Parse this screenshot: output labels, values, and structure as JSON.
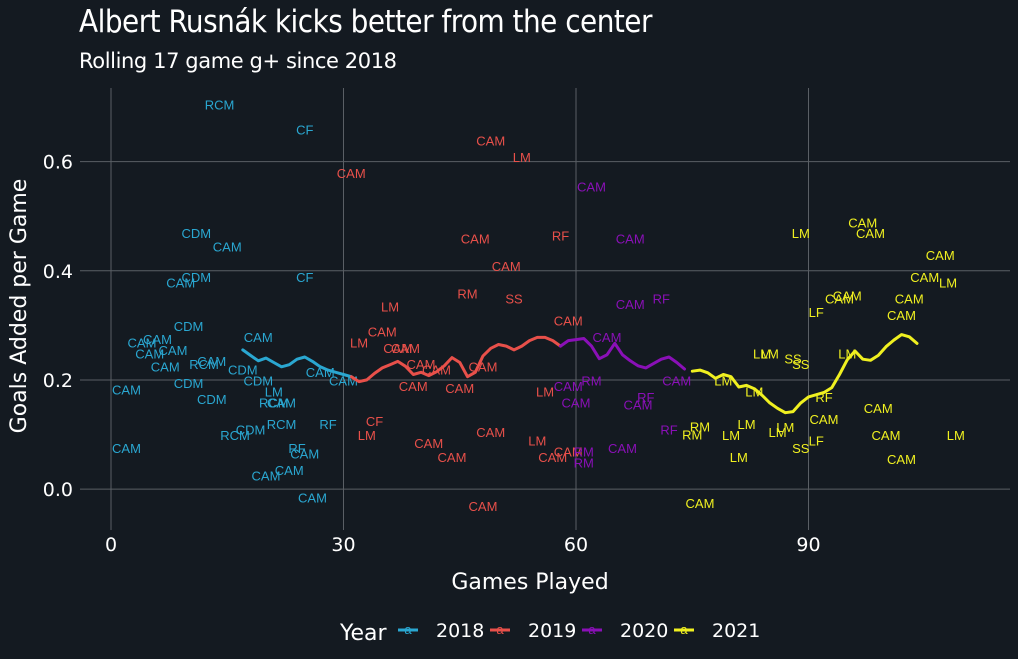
{
  "chart_data": {
    "type": "line",
    "title": "Albert Rusnák kicks better from the center",
    "subtitle": "Rolling 17 game g+ since 2018",
    "xlabel": "Games Played",
    "ylabel": "Goals Added per Game",
    "xlim": [
      -4,
      116
    ],
    "ylim": [
      -0.075,
      0.735
    ],
    "x_ticks": [
      0,
      30,
      60,
      90
    ],
    "x_tick_labels": [
      "0",
      "30",
      "60",
      "90"
    ],
    "y_ticks": [
      0.0,
      0.2,
      0.4,
      0.6
    ],
    "y_tick_labels": [
      "0.0",
      "0.2",
      "0.4",
      "0.6"
    ],
    "grid": true,
    "legend_title": "Year",
    "legend_position": "bottom",
    "legend_key_glyph": "a",
    "colors": {
      "2018": "#2aa7d1",
      "2019": "#e8504a",
      "2020": "#8a10b7",
      "2021": "#f0f020",
      "background": "#141a21",
      "grid": "#5a5f65"
    },
    "series": [
      {
        "name": "2018",
        "color": "#2aa7d1",
        "rolling": [
          [
            17,
            0.255
          ],
          [
            18,
            0.245
          ],
          [
            19,
            0.235
          ],
          [
            20,
            0.24
          ],
          [
            21,
            0.232
          ],
          [
            22,
            0.224
          ],
          [
            23,
            0.228
          ],
          [
            24,
            0.238
          ],
          [
            25,
            0.242
          ],
          [
            26,
            0.234
          ],
          [
            27,
            0.224
          ],
          [
            28,
            0.218
          ],
          [
            29,
            0.214
          ],
          [
            30,
            0.21
          ],
          [
            31,
            0.206
          ]
        ],
        "games": [
          [
            "CAM",
            2,
            0.073
          ],
          [
            "CAM",
            2,
            0.181
          ],
          [
            "CAM",
            4,
            0.267
          ],
          [
            "CAM",
            5,
            0.247
          ],
          [
            "CAM",
            6,
            0.273
          ],
          [
            "CAM",
            7,
            0.223
          ],
          [
            "CAM",
            8,
            0.253
          ],
          [
            "CAM",
            9,
            0.377
          ],
          [
            "CDM",
            10,
            0.297
          ],
          [
            "CDM",
            10,
            0.193
          ],
          [
            "CDM",
            11,
            0.467
          ],
          [
            "CDM",
            11,
            0.387
          ],
          [
            "RCM",
            12,
            0.227
          ],
          [
            "RCM",
            14,
            0.703
          ],
          [
            "CDM",
            13,
            0.163
          ],
          [
            "CAM",
            13,
            0.233
          ],
          [
            "CAM",
            15,
            0.443
          ],
          [
            "RCM",
            16,
            0.097
          ],
          [
            "CDM",
            17,
            0.217
          ],
          [
            "CDM",
            18,
            0.107
          ],
          [
            "CAM",
            19,
            0.277
          ],
          [
            "CDM",
            19,
            0.197
          ],
          [
            "CAM",
            20,
            0.023
          ],
          [
            "LM",
            21,
            0.177
          ],
          [
            "RCM",
            21,
            0.157
          ],
          [
            "CAM",
            22,
            0.157
          ],
          [
            "RCM",
            22,
            0.117
          ],
          [
            "CAM",
            23,
            0.033
          ],
          [
            "RF",
            24,
            0.073
          ],
          [
            "CAM",
            25,
            0.063
          ],
          [
            "CF",
            25,
            0.657
          ],
          [
            "CF",
            25,
            0.387
          ],
          [
            "CAM",
            26,
            -0.017
          ],
          [
            "CAM",
            27,
            0.213
          ],
          [
            "RF",
            28,
            0.117
          ],
          [
            "CAM",
            30,
            0.197
          ]
        ]
      },
      {
        "name": "2019",
        "color": "#e8504a",
        "rolling": [
          [
            31,
            0.206
          ],
          [
            32,
            0.197
          ],
          [
            33,
            0.2
          ],
          [
            34,
            0.212
          ],
          [
            35,
            0.222
          ],
          [
            36,
            0.228
          ],
          [
            37,
            0.234
          ],
          [
            38,
            0.225
          ],
          [
            39,
            0.21
          ],
          [
            40,
            0.214
          ],
          [
            41,
            0.208
          ],
          [
            42,
            0.215
          ],
          [
            43,
            0.226
          ],
          [
            44,
            0.241
          ],
          [
            45,
            0.232
          ],
          [
            46,
            0.206
          ],
          [
            47,
            0.214
          ],
          [
            48,
            0.244
          ],
          [
            49,
            0.258
          ],
          [
            50,
            0.265
          ],
          [
            51,
            0.262
          ],
          [
            52,
            0.255
          ],
          [
            53,
            0.262
          ],
          [
            54,
            0.272
          ],
          [
            55,
            0.278
          ],
          [
            56,
            0.278
          ],
          [
            57,
            0.272
          ],
          [
            58,
            0.262
          ]
        ],
        "games": [
          [
            "CAM",
            31,
            0.577
          ],
          [
            "LM",
            32,
            0.267
          ],
          [
            "LM",
            33,
            0.097
          ],
          [
            "CF",
            34,
            0.123
          ],
          [
            "CAM",
            35,
            0.287
          ],
          [
            "LM",
            36,
            0.333
          ],
          [
            "CAM",
            37,
            0.257
          ],
          [
            "CAM",
            38,
            0.257
          ],
          [
            "CAM",
            39,
            0.187
          ],
          [
            "CAM",
            40,
            0.227
          ],
          [
            "CAM",
            41,
            0.083
          ],
          [
            "CAM",
            42,
            0.217
          ],
          [
            "CAM",
            44,
            0.057
          ],
          [
            "CAM",
            45,
            0.183
          ],
          [
            "RM",
            46,
            0.357
          ],
          [
            "CAM",
            47,
            0.457
          ],
          [
            "CAM",
            48,
            0.223
          ],
          [
            "CAM",
            48,
            -0.033
          ],
          [
            "CAM",
            49,
            0.637
          ],
          [
            "CAM",
            49,
            0.103
          ],
          [
            "CAM",
            51,
            0.407
          ],
          [
            "SS",
            52,
            0.347
          ],
          [
            "LM",
            53,
            0.607
          ],
          [
            "LM",
            55,
            0.087
          ],
          [
            "LM",
            56,
            0.177
          ],
          [
            "CAM",
            57,
            0.057
          ],
          [
            "RF",
            58,
            0.463
          ],
          [
            "CAM",
            59,
            0.307
          ],
          [
            "CAM",
            59,
            0.067
          ]
        ]
      },
      {
        "name": "2020",
        "color": "#8a10b7",
        "rolling": [
          [
            58,
            0.262
          ],
          [
            59,
            0.272
          ],
          [
            60,
            0.274
          ],
          [
            61,
            0.276
          ],
          [
            62,
            0.262
          ],
          [
            63,
            0.239
          ],
          [
            64,
            0.246
          ],
          [
            65,
            0.267
          ],
          [
            66,
            0.246
          ],
          [
            67,
            0.235
          ],
          [
            68,
            0.226
          ],
          [
            69,
            0.222
          ],
          [
            70,
            0.23
          ],
          [
            71,
            0.238
          ],
          [
            72,
            0.242
          ],
          [
            73,
            0.232
          ],
          [
            74,
            0.22
          ]
        ],
        "games": [
          [
            "CAM",
            59,
            0.187
          ],
          [
            "CAM",
            60,
            0.157
          ],
          [
            "RM",
            61,
            0.067
          ],
          [
            "RM",
            61,
            0.047
          ],
          [
            "RM",
            62,
            0.197
          ],
          [
            "CAM",
            62,
            0.553
          ],
          [
            "CAM",
            64,
            0.277
          ],
          [
            "CAM",
            66,
            0.073
          ],
          [
            "CAM",
            67,
            0.337
          ],
          [
            "CAM",
            67,
            0.457
          ],
          [
            "CAM",
            68,
            0.153
          ],
          [
            "RF",
            69,
            0.167
          ],
          [
            "RF",
            71,
            0.347
          ],
          [
            "RF",
            72,
            0.107
          ],
          [
            "CAM",
            73,
            0.197
          ]
        ]
      },
      {
        "name": "2021",
        "color": "#f0f020",
        "rolling": [
          [
            75,
            0.216
          ],
          [
            76,
            0.218
          ],
          [
            77,
            0.213
          ],
          [
            78,
            0.203
          ],
          [
            79,
            0.21
          ],
          [
            80,
            0.206
          ],
          [
            81,
            0.187
          ],
          [
            82,
            0.19
          ],
          [
            83,
            0.184
          ],
          [
            84,
            0.172
          ],
          [
            85,
            0.158
          ],
          [
            86,
            0.148
          ],
          [
            87,
            0.14
          ],
          [
            88,
            0.142
          ],
          [
            89,
            0.158
          ],
          [
            90,
            0.169
          ],
          [
            91,
            0.173
          ],
          [
            92,
            0.177
          ],
          [
            93,
            0.186
          ],
          [
            94,
            0.21
          ],
          [
            95,
            0.237
          ],
          [
            96,
            0.253
          ],
          [
            97,
            0.238
          ],
          [
            98,
            0.236
          ],
          [
            99,
            0.245
          ],
          [
            100,
            0.261
          ],
          [
            101,
            0.273
          ],
          [
            102,
            0.283
          ],
          [
            103,
            0.279
          ],
          [
            104,
            0.267
          ]
        ],
        "games": [
          [
            "RM",
            75,
            0.098
          ],
          [
            "RM",
            76,
            0.113
          ],
          [
            "CAM",
            76,
            -0.027
          ],
          [
            "LM",
            79,
            0.197
          ],
          [
            "LM",
            80,
            0.097
          ],
          [
            "LM",
            81,
            0.057
          ],
          [
            "LM",
            82,
            0.117
          ],
          [
            "LM",
            83,
            0.177
          ],
          [
            "LM",
            84,
            0.247
          ],
          [
            "LM",
            85,
            0.247
          ],
          [
            "LM",
            86,
            0.103
          ],
          [
            "LM",
            87,
            0.112
          ],
          [
            "SS",
            88,
            0.237
          ],
          [
            "SS",
            89,
            0.227
          ],
          [
            "SS",
            89,
            0.073
          ],
          [
            "LM",
            89,
            0.467
          ],
          [
            "LF",
            91,
            0.087
          ],
          [
            "LF",
            91,
            0.323
          ],
          [
            "RF",
            92,
            0.167
          ],
          [
            "CAM",
            92,
            0.127
          ],
          [
            "CAM",
            94,
            0.347
          ],
          [
            "CAM",
            95,
            0.353
          ],
          [
            "LM",
            95,
            0.247
          ],
          [
            "CAM",
            97,
            0.487
          ],
          [
            "CAM",
            98,
            0.467
          ],
          [
            "CAM",
            99,
            0.147
          ],
          [
            "CAM",
            100,
            0.097
          ],
          [
            "CAM",
            102,
            0.053
          ],
          [
            "CAM",
            102,
            0.317
          ],
          [
            "CAM",
            103,
            0.347
          ],
          [
            "CAM",
            105,
            0.387
          ],
          [
            "CAM",
            107,
            0.427
          ],
          [
            "LM",
            108,
            0.377
          ],
          [
            "LM",
            109,
            0.097
          ]
        ]
      }
    ]
  }
}
